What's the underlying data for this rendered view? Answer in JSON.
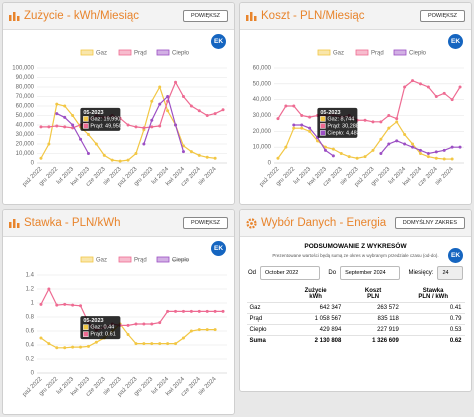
{
  "ui": {
    "zoom_button": "POWIĘKSZ",
    "badge": "EK",
    "default_range_button": "DOMYŚLNY ZAKRES"
  },
  "chart_data": [
    {
      "type": "line",
      "title": "Zużycie - kWh/Miesiąc",
      "categories": [
        "paź 2022",
        null,
        "gru 2022",
        null,
        "lut 2023",
        null,
        "kwi 2023",
        null,
        "cze 2023",
        null,
        "sie 2023",
        null,
        "paź 2023",
        null,
        "gru 2023",
        null,
        "lut 2024",
        null,
        "kwi 2024",
        null,
        "cze 2024",
        null,
        "sie 2024",
        null
      ],
      "series": [
        {
          "name": "Gaz",
          "color": "#f2c744",
          "values": [
            5000,
            20000,
            62000,
            60000,
            50000,
            38000,
            30000,
            19990,
            8000,
            3000,
            2000,
            3000,
            10000,
            35000,
            65000,
            80000,
            55000,
            40000,
            18000,
            12000,
            8000,
            6000,
            5000,
            null
          ]
        },
        {
          "name": "Prąd",
          "color": "#ee6b92",
          "values": [
            38000,
            38000,
            39000,
            38000,
            37000,
            40000,
            45000,
            49950,
            48000,
            50000,
            47000,
            40000,
            38000,
            37000,
            38000,
            39000,
            65000,
            85000,
            70000,
            60000,
            55000,
            50000,
            52000,
            56000
          ]
        },
        {
          "name": "Ciepło",
          "color": "#9c4fc4",
          "values": [
            null,
            null,
            52000,
            48000,
            40000,
            25000,
            10000,
            null,
            null,
            null,
            null,
            null,
            null,
            20000,
            45000,
            62000,
            70000,
            40000,
            12000,
            null,
            null,
            null,
            null,
            null
          ]
        }
      ],
      "ylim": [
        0,
        100000
      ],
      "yticks": [
        0,
        {
          "value": 10000,
          "label": "10,000"
        },
        {
          "value": 20000,
          "label": "20,000"
        },
        {
          "value": 30000,
          "label": "30,000"
        },
        {
          "value": 40000,
          "label": "40,000"
        },
        {
          "value": 50000,
          "label": "50,000"
        },
        {
          "value": 60000,
          "label": "60,000"
        },
        {
          "value": 70000,
          "label": "70,000"
        },
        {
          "value": 80000,
          "label": "80,000"
        },
        {
          "value": 90000,
          "label": "90,000"
        },
        {
          "value": 100000,
          "label": "100,000"
        }
      ],
      "grid": true,
      "tooltip": {
        "title": "05-2023",
        "lines": [
          "Gaz: 19,990",
          "Prąd: 49,950"
        ]
      }
    },
    {
      "type": "line",
      "title": "Koszt - PLN/Miesiąc",
      "categories": [
        "paź 2022",
        null,
        "gru 2022",
        null,
        "lut 2023",
        null,
        "kwi 2023",
        null,
        "cze 2023",
        null,
        "sie 2023",
        null,
        "paź 2023",
        null,
        "gru 2023",
        null,
        "lut 2024",
        null,
        "kwi 2024",
        null,
        "cze 2024",
        null,
        "sie 2024",
        null
      ],
      "series": [
        {
          "name": "Gaz",
          "color": "#f2c744",
          "values": [
            3000,
            10000,
            22000,
            22000,
            20000,
            14000,
            10000,
            8744,
            6000,
            4000,
            3000,
            4000,
            8000,
            15000,
            22000,
            26000,
            18000,
            12000,
            6000,
            4000,
            3000,
            2500,
            2500,
            null
          ]
        },
        {
          "name": "Prąd",
          "color": "#ee6b92",
          "values": [
            28000,
            36000,
            36000,
            30000,
            29000,
            30000,
            30000,
            30288,
            29000,
            30000,
            27000,
            27000,
            26000,
            26000,
            30000,
            28000,
            48000,
            52000,
            50000,
            48000,
            42000,
            44000,
            40000,
            48000
          ]
        },
        {
          "name": "Ciepło",
          "color": "#9c4fc4",
          "values": [
            null,
            null,
            24000,
            24000,
            22000,
            16000,
            8000,
            4483,
            null,
            null,
            null,
            null,
            null,
            6000,
            12000,
            14000,
            12000,
            10000,
            8000,
            6000,
            7000,
            8000,
            10000,
            10000
          ]
        }
      ],
      "ylim": [
        0,
        60000
      ],
      "yticks": [
        0,
        {
          "value": 10000,
          "label": "10,000"
        },
        {
          "value": 20000,
          "label": "20,000"
        },
        {
          "value": 30000,
          "label": "30,000"
        },
        {
          "value": 40000,
          "label": "40,000"
        },
        {
          "value": 50000,
          "label": "50,000"
        },
        {
          "value": 60000,
          "label": "60,000"
        }
      ],
      "grid": true,
      "tooltip": {
        "title": "05-2023",
        "lines": [
          "Gaz: 8,744",
          "Prąd: 30,288",
          "Ciepło: 4,483"
        ]
      }
    },
    {
      "type": "line",
      "title": "Stawka - PLN/kWh",
      "categories": [
        "paź 2022",
        null,
        "gru 2022",
        null,
        "lut 2023",
        null,
        "kwi 2023",
        null,
        "cze 2023",
        null,
        "sie 2023",
        null,
        "paź 2023",
        null,
        "gru 2023",
        null,
        "lut 2024",
        null,
        "kwi 2024",
        null,
        "cze 2024",
        null,
        "sie 2024",
        null
      ],
      "series": [
        {
          "name": "Gaz",
          "color": "#f2c744",
          "values": [
            0.5,
            0.42,
            0.36,
            0.36,
            0.37,
            0.37,
            0.38,
            0.44,
            0.5,
            0.6,
            0.7,
            0.55,
            0.42,
            0.42,
            0.42,
            0.42,
            0.42,
            0.42,
            0.5,
            0.6,
            0.62,
            0.62,
            0.62,
            null
          ]
        },
        {
          "name": "Prąd",
          "color": "#ee6b92",
          "values": [
            0.98,
            1.2,
            0.97,
            0.98,
            0.97,
            0.96,
            0.72,
            0.61,
            0.65,
            0.7,
            0.68,
            0.68,
            0.7,
            0.7,
            0.7,
            0.72,
            0.88,
            0.88,
            0.88,
            0.88,
            0.88,
            0.88,
            0.88,
            0.88
          ]
        },
        {
          "name": "Ciepło",
          "color": "#9c4fc4",
          "hidden": true
        }
      ],
      "ylim": [
        0,
        1.4
      ],
      "yticks": [
        0,
        0.2,
        0.4,
        0.6,
        0.8,
        1,
        1.2,
        1.4
      ],
      "grid": true,
      "tooltip": {
        "title": "05-2023",
        "lines": [
          "Gaz: 0.44",
          "Prąd: 0.61"
        ]
      }
    }
  ],
  "data_panel": {
    "title": "Wybór Danych - Energia",
    "summary_title": "PODSUMOWANIE Z WYKRESÓW",
    "summary_note": "Prezentowane wartości będą sumą ze okres w wybranym przedziale czasu (od-do).",
    "from_label": "Od",
    "from_value": "October 2022",
    "to_label": "Do",
    "to_value": "September 2024",
    "months_label": "Miesięcy:",
    "months_value": "24",
    "table": {
      "header": [
        [
          "Zużycie",
          "kWh"
        ],
        [
          "Koszt",
          "PLN"
        ],
        [
          "Stawka",
          "PLN / kWh"
        ]
      ],
      "rows": [
        [
          "Gaz",
          "642 347",
          "263 572",
          "0.41"
        ],
        [
          "Prąd",
          "1 058 567",
          "835 118",
          "0.79"
        ],
        [
          "Ciepło",
          "429 894",
          "227 919",
          "0.53"
        ]
      ],
      "total": [
        "Suma",
        "2 130 808",
        "1 326 609",
        "0.62"
      ]
    }
  }
}
